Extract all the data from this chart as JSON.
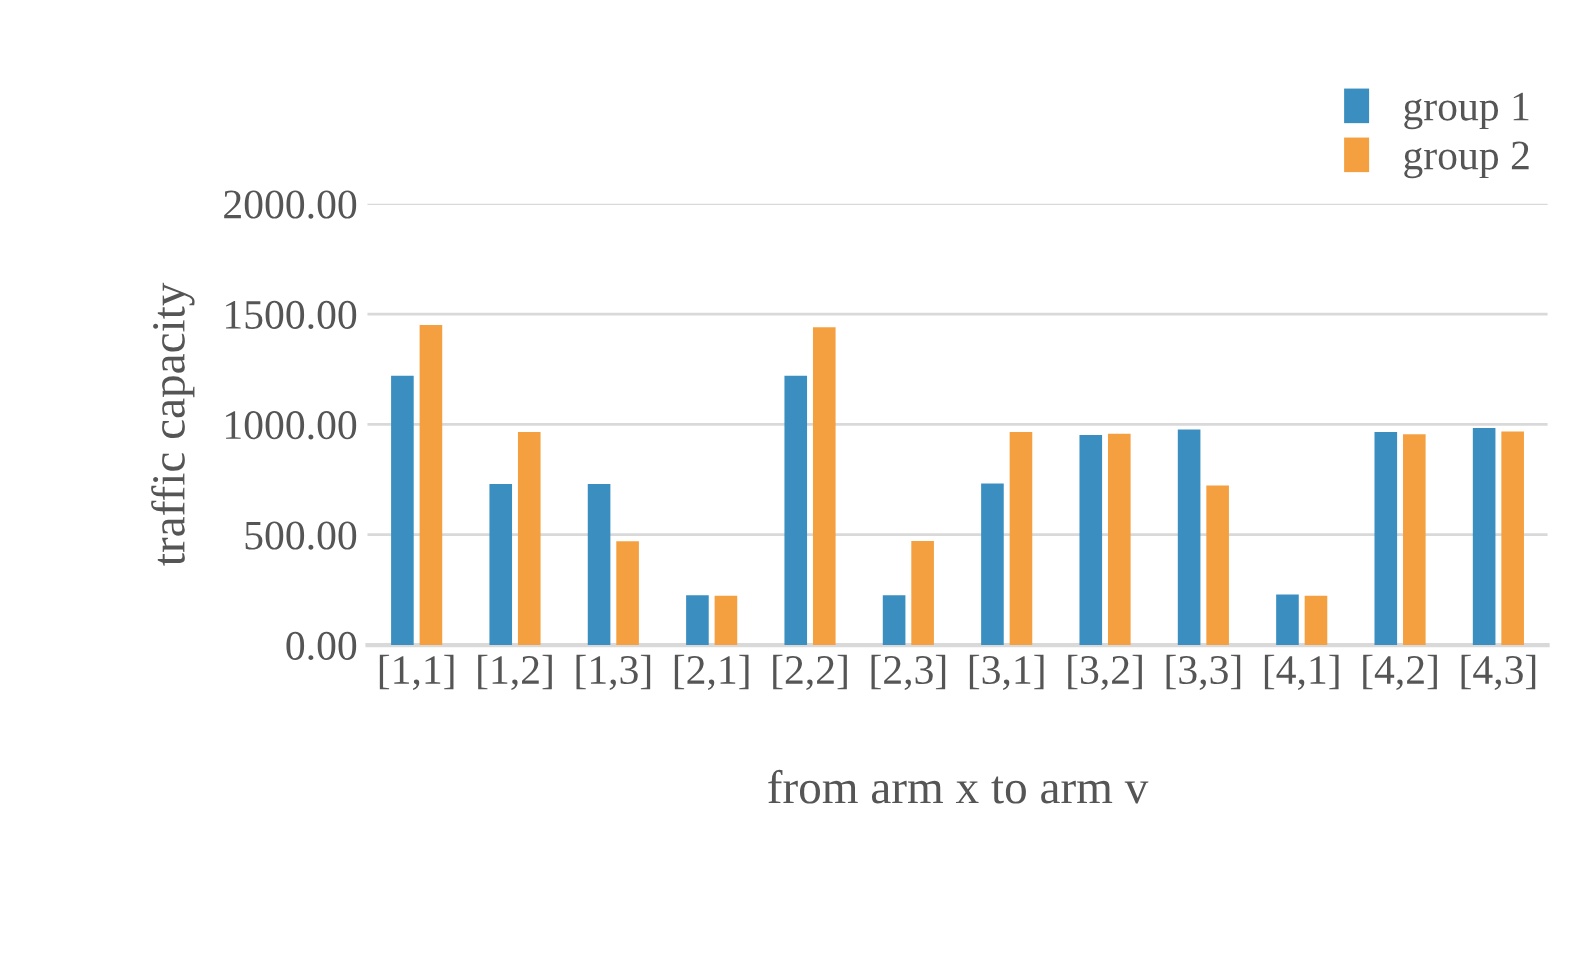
{
  "chart_data": {
    "type": "bar",
    "xlabel": "from arm x to arm v",
    "ylabel": "traffic capacity",
    "categories": [
      "[1,1]",
      "[1,2]",
      "[1,3]",
      "[2,1]",
      "[2,2]",
      "[2,3]",
      "[3,1]",
      "[3,2]",
      "[3,3]",
      "[4,1]",
      "[4,2]",
      "[4,3]"
    ],
    "series": [
      {
        "name": "group 1",
        "color": "#3b8fc0",
        "values": [
          1220,
          730,
          730,
          226,
          1220,
          226,
          732,
          952,
          977,
          229,
          965,
          984
        ]
      },
      {
        "name": "group 2",
        "color": "#f5a040",
        "values": [
          1450,
          965,
          470,
          223,
          1440,
          471,
          965,
          958,
          723,
          223,
          955,
          968
        ]
      }
    ],
    "ylim": [
      0,
      2000
    ],
    "yticks": [
      {
        "value": 0,
        "label": "0.00"
      },
      {
        "value": 500,
        "label": "500.00"
      },
      {
        "value": 1000,
        "label": "1000.00"
      },
      {
        "value": 1500,
        "label": "1500.00"
      },
      {
        "value": 2000,
        "label": "2000.00"
      }
    ],
    "grid": "y",
    "legend": "top right"
  }
}
